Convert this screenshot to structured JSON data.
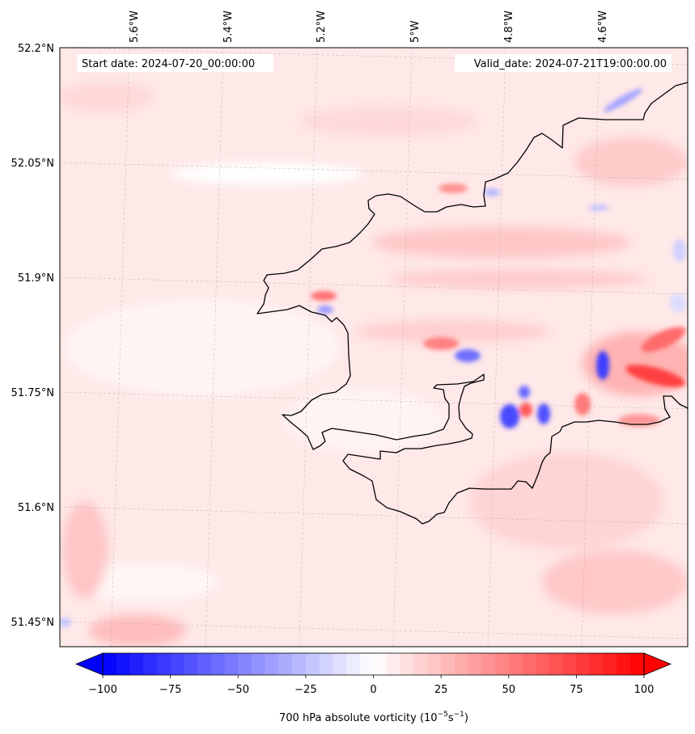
{
  "header": {
    "start_date": "Start date: 2024-07-20_00:00:00",
    "valid_date": "Valid_date: 2024-07-21T19:00:00.00"
  },
  "map": {
    "lon_labels": [
      "5.6°W",
      "5.4°W",
      "5.2°W",
      "5°W",
      "4.8°W",
      "4.6°W"
    ],
    "lat_labels": [
      "52.2°N",
      "52.05°N",
      "51.9°N",
      "51.75°N",
      "51.6°N",
      "51.45°N"
    ],
    "gridlines": true,
    "colors": {
      "negative": "#0000ff",
      "zero": "#ffffff",
      "positive": "#ff0000",
      "coastline": "#000000"
    }
  },
  "colorbar": {
    "ticks": [
      "−100",
      "−75",
      "−50",
      "−25",
      "0",
      "25",
      "50",
      "75",
      "100"
    ],
    "range": [
      -100,
      100
    ],
    "extend": "both",
    "label": "700 hPa absolute vorticity (10",
    "label_exp1": "−5",
    "label_mid": "s",
    "label_exp2": "−1",
    "label_end": ")"
  }
}
